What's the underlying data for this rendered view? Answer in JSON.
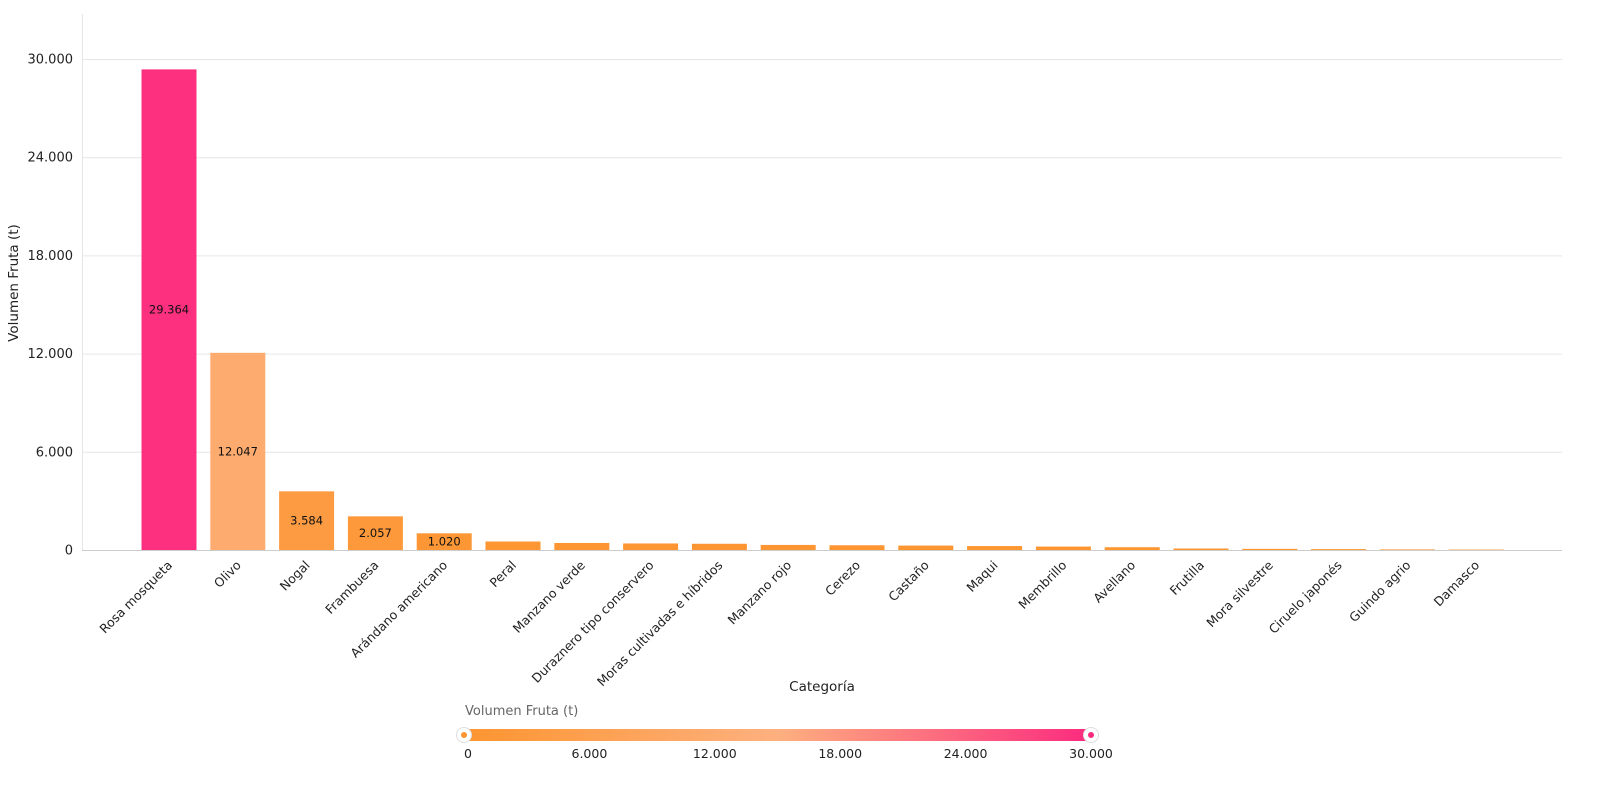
{
  "chart_data": {
    "type": "bar",
    "xlabel": "Categoría",
    "ylabel": "Volumen Fruta (t)",
    "ylim": [
      0,
      30000
    ],
    "y_ticks": [
      "0",
      "6.000",
      "12.000",
      "18.000",
      "24.000",
      "30.000"
    ],
    "y_tick_values": [
      0,
      6000,
      12000,
      18000,
      24000,
      30000
    ],
    "grid": true,
    "legend_placement": "bottom",
    "categories": [
      "Rosa mosqueta",
      "Olivo",
      "Nogal",
      "Frambuesa",
      "Arándano americano",
      "Peral",
      "Manzano verde",
      "Duraznero tipo conservero",
      "Moras cultivadas e híbridos",
      "Manzano rojo",
      "Cerezo",
      "Castaño",
      "Maqui",
      "Membrillo",
      "Avellano",
      "Frutilla",
      "Mora silvestre",
      "Ciruelo japonés",
      "Guindo agrio",
      "Damasco"
    ],
    "values": [
      29364,
      12047,
      3584,
      2057,
      1020,
      520,
      430,
      400,
      380,
      310,
      290,
      270,
      240,
      210,
      170,
      90,
      70,
      55,
      35,
      25
    ],
    "data_labels": [
      "29.364",
      "12.047",
      "3.584",
      "2.057",
      "1.020",
      "",
      "",
      "",
      "",
      "",
      "",
      "",
      "",
      "",
      "",
      "",
      "",
      "",
      "",
      ""
    ],
    "color_scale": {
      "title": "Volumen Fruta (t)",
      "min": 0,
      "max": 30000,
      "stops": [
        "#fd9530",
        "#fdb07f",
        "#fc2a7f"
      ],
      "ticks": [
        "0",
        "6.000",
        "12.000",
        "18.000",
        "24.000",
        "30.000"
      ],
      "tick_values": [
        0,
        6000,
        12000,
        18000,
        24000,
        30000
      ]
    }
  }
}
